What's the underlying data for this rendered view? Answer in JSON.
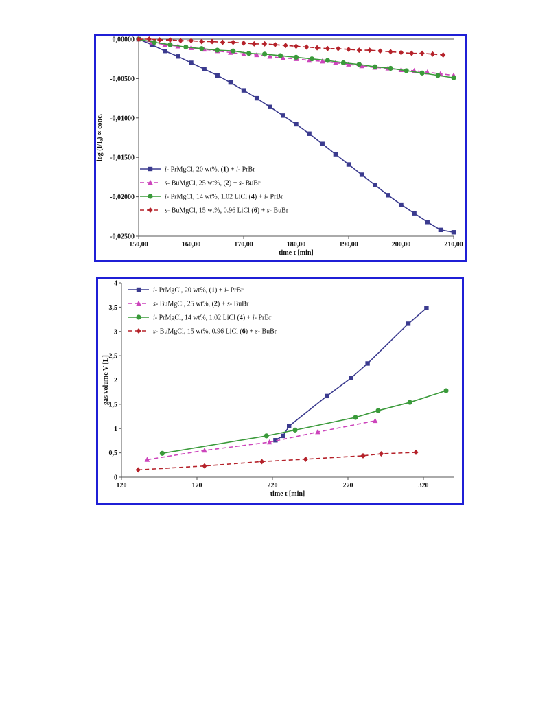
{
  "chart_data": [
    {
      "type": "line",
      "title": "",
      "xlabel": "time t [min]",
      "ylabel": "log (I/I₀) ∝ conc.",
      "xlim": [
        150,
        210
      ],
      "ylim": [
        -0.025,
        0
      ],
      "x_ticks": [
        150,
        160,
        170,
        180,
        190,
        200,
        210
      ],
      "x_tick_labels": [
        "150,00",
        "160,00",
        "170,00",
        "180,00",
        "190,00",
        "200,00",
        "210,00"
      ],
      "y_ticks": [
        0,
        -0.005,
        -0.01,
        -0.015,
        -0.02,
        -0.025
      ],
      "y_tick_labels": [
        "0,00000",
        "-0,00500",
        "-0,01000",
        "-0,01500",
        "-0,02000",
        "-0,02500"
      ],
      "grid": false,
      "legend_position": "bottom-left",
      "series": [
        {
          "name_parts": [
            {
              "t": "i-",
              "i": true
            },
            {
              "t": " PrMgCl, 20 wt%, ("
            },
            {
              "t": "1",
              "b": true
            },
            {
              "t": ") + "
            },
            {
              "t": "i-",
              "i": true
            },
            {
              "t": " PrBr"
            }
          ],
          "color": "#3b3b8f",
          "marker": "square",
          "dash": "solid",
          "x": [
            150,
            152.5,
            155,
            157.5,
            160,
            162.5,
            165,
            167.5,
            170,
            172.5,
            175,
            177.5,
            180,
            182.5,
            185,
            187.5,
            190,
            192.5,
            195,
            197.5,
            200,
            202.5,
            205,
            207.5,
            210
          ],
          "y": [
            0,
            -0.0007,
            -0.0015,
            -0.0022,
            -0.003,
            -0.0038,
            -0.0046,
            -0.0055,
            -0.0065,
            -0.0075,
            -0.0086,
            -0.0097,
            -0.0108,
            -0.012,
            -0.0133,
            -0.0146,
            -0.0159,
            -0.0172,
            -0.0185,
            -0.0198,
            -0.021,
            -0.0221,
            -0.0232,
            -0.0242,
            -0.0245
          ]
        },
        {
          "name_parts": [
            {
              "t": "s-",
              "i": true
            },
            {
              "t": " BuMgCl, 25 wt%, ("
            },
            {
              "t": "2",
              "b": true
            },
            {
              "t": ") + "
            },
            {
              "t": "s-",
              "i": true
            },
            {
              "t": " BuBr"
            }
          ],
          "color": "#cc44bb",
          "marker": "triangle",
          "dash": "dashed",
          "x": [
            150,
            152.5,
            155,
            157.5,
            160,
            162.5,
            165,
            167.5,
            170,
            172.5,
            175,
            177.5,
            180,
            182.5,
            185,
            187.5,
            190,
            192.5,
            195,
            197.5,
            200,
            202.5,
            205,
            207.5,
            210
          ],
          "y": [
            0,
            -0.0004,
            -0.0007,
            -0.0009,
            -0.0011,
            -0.0013,
            -0.0015,
            -0.0017,
            -0.0019,
            -0.002,
            -0.0022,
            -0.0024,
            -0.0025,
            -0.0027,
            -0.0028,
            -0.003,
            -0.0032,
            -0.0034,
            -0.0036,
            -0.0037,
            -0.0039,
            -0.004,
            -0.0042,
            -0.0044,
            -0.0046
          ]
        },
        {
          "name_parts": [
            {
              "t": "i-",
              "i": true
            },
            {
              "t": " PrMgCl, 14 wt%, 1.02 LiCl ("
            },
            {
              "t": "4",
              "b": true
            },
            {
              "t": ") + "
            },
            {
              "t": "i-",
              "i": true
            },
            {
              "t": " PrBr"
            }
          ],
          "color": "#3a9a3a",
          "marker": "circle",
          "dash": "solid",
          "x": [
            150,
            153,
            156,
            159,
            162,
            165,
            168,
            171,
            174,
            177,
            180,
            183,
            186,
            189,
            192,
            195,
            198,
            201,
            204,
            207,
            210
          ],
          "y": [
            0,
            -0.0004,
            -0.0007,
            -0.001,
            -0.0012,
            -0.0014,
            -0.0015,
            -0.0018,
            -0.0019,
            -0.0021,
            -0.0023,
            -0.0025,
            -0.0027,
            -0.003,
            -0.0032,
            -0.0035,
            -0.0037,
            -0.004,
            -0.0043,
            -0.0046,
            -0.0049
          ]
        },
        {
          "name_parts": [
            {
              "t": "s-",
              "i": true
            },
            {
              "t": " BuMgCl, 15 wt%, 0.96 LiCl ("
            },
            {
              "t": "6",
              "b": true
            },
            {
              "t": ") + "
            },
            {
              "t": "s-",
              "i": true
            },
            {
              "t": " BuBr"
            }
          ],
          "color": "#b5222a",
          "marker": "diamond",
          "dash": "dashed",
          "x": [
            150,
            152,
            154,
            156,
            158,
            160,
            162,
            164,
            166,
            168,
            170,
            172,
            174,
            176,
            178,
            180,
            182,
            184,
            186,
            188,
            190,
            192,
            194,
            196,
            198,
            200,
            202,
            204,
            206,
            208
          ],
          "y": [
            0,
            0,
            -0.0001,
            -0.0001,
            -0.0002,
            -0.0002,
            -0.0003,
            -0.0003,
            -0.0004,
            -0.0004,
            -0.0005,
            -0.0006,
            -0.0006,
            -0.0007,
            -0.0008,
            -0.0009,
            -0.001,
            -0.0011,
            -0.0012,
            -0.0012,
            -0.0013,
            -0.0014,
            -0.0014,
            -0.0015,
            -0.0016,
            -0.0017,
            -0.0018,
            -0.0018,
            -0.0019,
            -0.002
          ]
        }
      ]
    },
    {
      "type": "line",
      "title": "",
      "xlabel": "time t [min]",
      "ylabel": "gas volume V [L]",
      "xlim": [
        120,
        340
      ],
      "ylim": [
        0,
        4
      ],
      "x_ticks": [
        120,
        170,
        220,
        270,
        320
      ],
      "x_tick_labels": [
        "120",
        "170",
        "220",
        "270",
        "320"
      ],
      "y_ticks": [
        0,
        0.5,
        1,
        1.5,
        2,
        2.5,
        3,
        3.5,
        4
      ],
      "y_tick_labels": [
        "0",
        "0,5",
        "1",
        "1,5",
        "2",
        "2,5",
        "3",
        "3,5",
        "4"
      ],
      "grid": false,
      "legend_position": "top-left",
      "series": [
        {
          "name_parts": [
            {
              "t": "i-",
              "i": true
            },
            {
              "t": " PrMgCl, 20 wt%, ("
            },
            {
              "t": "1",
              "b": true
            },
            {
              "t": ") + "
            },
            {
              "t": "i-",
              "i": true
            },
            {
              "t": " PrBr"
            }
          ],
          "color": "#3b3b8f",
          "marker": "square",
          "dash": "solid",
          "x": [
            222,
            227,
            231,
            256,
            272,
            283,
            310,
            322
          ],
          "y": [
            0.76,
            0.85,
            1.05,
            1.67,
            2.04,
            2.34,
            3.16,
            3.48
          ]
        },
        {
          "name_parts": [
            {
              "t": "s-",
              "i": true
            },
            {
              "t": " BuMgCl, 25 wt%, ("
            },
            {
              "t": "2",
              "b": true
            },
            {
              "t": ") + "
            },
            {
              "t": "s-",
              "i": true
            },
            {
              "t": " BuBr"
            }
          ],
          "color": "#cc44bb",
          "marker": "triangle",
          "dash": "dashed",
          "x": [
            137,
            175,
            218,
            250,
            288
          ],
          "y": [
            0.36,
            0.55,
            0.72,
            0.93,
            1.16
          ]
        },
        {
          "name_parts": [
            {
              "t": "i-",
              "i": true
            },
            {
              "t": " PrMgCl, 14 wt%, 1.02 LiCl ("
            },
            {
              "t": "4",
              "b": true
            },
            {
              "t": ") + "
            },
            {
              "t": "i-",
              "i": true
            },
            {
              "t": " PrBr"
            }
          ],
          "color": "#3a9a3a",
          "marker": "circle",
          "dash": "solid",
          "x": [
            147,
            216,
            235,
            275,
            290,
            311,
            335
          ],
          "y": [
            0.49,
            0.85,
            0.97,
            1.23,
            1.37,
            1.54,
            1.78
          ]
        },
        {
          "name_parts": [
            {
              "t": "s-",
              "i": true
            },
            {
              "t": " BuMgCl, 15 wt%, 0.96 LiCl ("
            },
            {
              "t": "6",
              "b": true
            },
            {
              "t": ") + "
            },
            {
              "t": "s-",
              "i": true
            },
            {
              "t": " BuBr"
            }
          ],
          "color": "#b5222a",
          "marker": "diamond",
          "dash": "dashed",
          "x": [
            131,
            175,
            213,
            242,
            280,
            292,
            315
          ],
          "y": [
            0.15,
            0.23,
            0.32,
            0.37,
            0.44,
            0.48,
            0.51
          ]
        }
      ]
    }
  ]
}
